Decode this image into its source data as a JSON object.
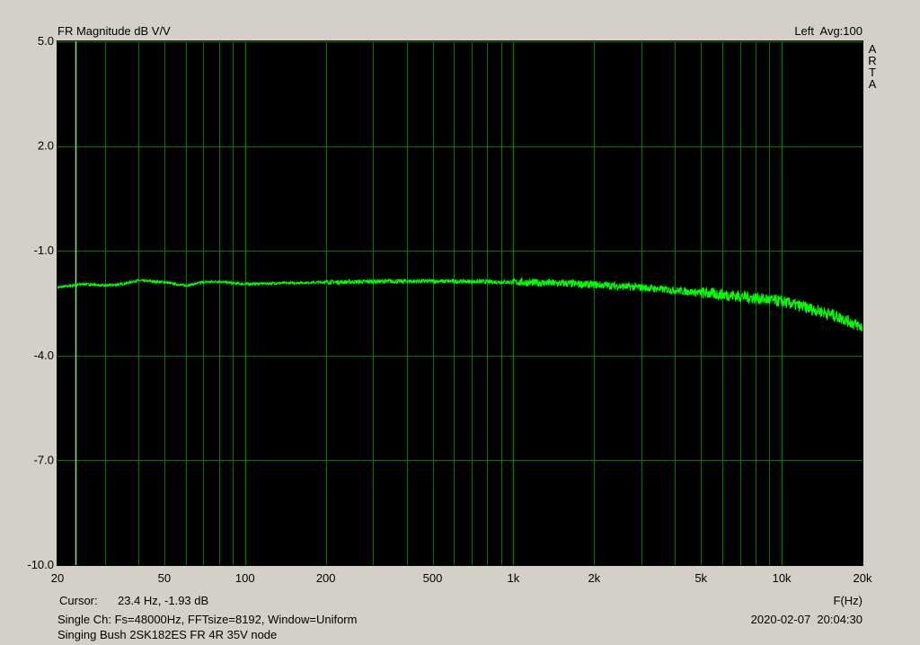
{
  "header": {
    "title": "FR Magnitude dB V/V",
    "right_info": "Left  Avg:100",
    "brand_letters": [
      "A",
      "R",
      "T",
      "A"
    ]
  },
  "footer": {
    "cursor_label": "Cursor:",
    "cursor_value": "23.4 Hz, -1.93 dB",
    "x_unit": "F(Hz)",
    "setup": "Single Ch: Fs=48000Hz, FFTsize=8192, Window=Uniform",
    "timestamp": "2020-02-07  20:04:30",
    "caption": "Singing Bush 2SK182ES FR 4R 35V node"
  },
  "colors": {
    "background": "#d4d0c8",
    "plot_bg": "#000000",
    "grid": "#007a00",
    "cursor": "#7ee27e",
    "trace": "#00ff00"
  },
  "chart_data": {
    "type": "line",
    "title": "FR Magnitude dB V/V",
    "xlabel": "F(Hz)",
    "ylabel": "",
    "x_scale": "log",
    "xlim": [
      20,
      20000
    ],
    "ylim": [
      -10,
      5
    ],
    "grid": true,
    "x_ticks": [
      20,
      50,
      100,
      200,
      500,
      1000,
      2000,
      5000,
      10000,
      20000
    ],
    "x_tick_labels": [
      "20",
      "50",
      "100",
      "200",
      "500",
      "1k",
      "2k",
      "5k",
      "10k",
      "20k"
    ],
    "y_ticks": [
      5,
      2,
      -1,
      -4,
      -7,
      -10
    ],
    "y_tick_labels": [
      "5.0",
      "2.0",
      "-1.0",
      "-4.0",
      "-7.0",
      "-10.0"
    ],
    "cursor_x": 23.4,
    "series": [
      {
        "x": [
          20,
          25,
          30,
          35,
          40,
          50,
          60,
          70,
          80,
          90,
          100,
          150,
          200,
          300,
          500,
          700,
          1000,
          1500,
          2000,
          3000,
          5000,
          7000,
          10000,
          12000,
          15000,
          17000,
          20000
        ],
        "y": [
          -2.05,
          -1.95,
          -2.0,
          -1.95,
          -1.85,
          -1.9,
          -2.0,
          -1.9,
          -1.88,
          -1.93,
          -1.95,
          -1.92,
          -1.9,
          -1.88,
          -1.87,
          -1.88,
          -1.9,
          -1.93,
          -1.97,
          -2.05,
          -2.2,
          -2.3,
          -2.45,
          -2.6,
          -2.8,
          -2.95,
          -3.2
        ]
      }
    ]
  }
}
